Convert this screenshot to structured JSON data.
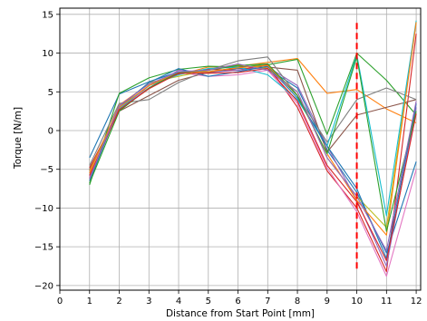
{
  "chart_data": {
    "type": "line",
    "title": "",
    "xlabel": "Distance from Start Point [mm]",
    "ylabel": "Torque [N/m]",
    "xlim": [
      0,
      12.15
    ],
    "ylim": [
      -20.6,
      15.8
    ],
    "xticks": [
      0,
      1,
      2,
      3,
      4,
      5,
      6,
      7,
      8,
      9,
      10,
      11,
      12
    ],
    "yticks": [
      -20,
      -15,
      -10,
      -5,
      0,
      5,
      10,
      15
    ],
    "grid": true,
    "x": [
      1,
      2,
      3,
      4,
      5,
      6,
      7,
      8,
      9,
      10,
      11,
      12
    ],
    "series": [
      {
        "color": "#1f77b4",
        "values": [
          -3.5,
          4.7,
          6.3,
          7.6,
          7.5,
          8.0,
          8.0,
          5.5,
          -2.5,
          -8.0,
          -15.8,
          -4.0
        ]
      },
      {
        "color": "#ff7f0e",
        "values": [
          -5.5,
          3.3,
          6.0,
          7.2,
          8.2,
          8.3,
          8.8,
          9.3,
          4.8,
          5.3,
          2.8,
          1.0
        ]
      },
      {
        "color": "#2ca02c",
        "values": [
          -7.0,
          4.8,
          6.8,
          7.9,
          8.3,
          8.2,
          8.5,
          9.2,
          -0.5,
          10.0,
          6.5,
          2.0
        ]
      },
      {
        "color": "#d62728",
        "values": [
          -4.8,
          2.6,
          5.8,
          7.3,
          7.9,
          7.8,
          8.5,
          3.0,
          -5.2,
          -10.0,
          -18.2,
          12.5
        ]
      },
      {
        "color": "#9467bd",
        "values": [
          -6.0,
          2.8,
          5.5,
          7.8,
          7.5,
          7.8,
          8.2,
          5.8,
          -2.0,
          -9.0,
          -17.5,
          3.0
        ]
      },
      {
        "color": "#8c564b",
        "values": [
          -5.0,
          2.5,
          4.5,
          6.5,
          7.5,
          8.2,
          8.2,
          7.8,
          -2.8,
          2.0,
          3.0,
          4.0
        ]
      },
      {
        "color": "#e377c2",
        "values": [
          -6.0,
          3.0,
          5.5,
          7.5,
          7.0,
          7.2,
          7.8,
          3.5,
          -4.8,
          -10.5,
          -18.8,
          -5.0
        ]
      },
      {
        "color": "#7f7f7f",
        "values": [
          -4.5,
          3.5,
          4.0,
          6.2,
          7.8,
          9.0,
          9.5,
          4.5,
          -1.5,
          4.0,
          5.5,
          4.0
        ]
      },
      {
        "color": "#bcbd22",
        "values": [
          -6.2,
          3.0,
          6.2,
          7.0,
          7.8,
          8.5,
          8.0,
          5.0,
          -3.5,
          -8.5,
          -12.5,
          14.0
        ]
      },
      {
        "color": "#17becf",
        "values": [
          -5.2,
          2.8,
          5.8,
          7.2,
          8.0,
          8.2,
          7.2,
          4.0,
          -2.0,
          9.8,
          -11.0,
          14.2
        ]
      },
      {
        "color": "#1f77b4",
        "values": [
          -6.5,
          3.0,
          6.2,
          8.0,
          7.0,
          7.6,
          8.3,
          4.2,
          -2.0,
          -7.5,
          -16.5,
          3.5
        ]
      },
      {
        "color": "#ff7f0e",
        "values": [
          -5.2,
          3.0,
          5.8,
          7.5,
          7.6,
          8.1,
          8.4,
          4.5,
          -3.0,
          -9.0,
          -13.5,
          14.0
        ]
      },
      {
        "color": "#2ca02c",
        "values": [
          -6.8,
          2.5,
          5.5,
          7.5,
          7.8,
          8.4,
          8.6,
          4.5,
          -3.0,
          9.5,
          -13.0,
          2.5
        ]
      },
      {
        "color": "#d62728",
        "values": [
          -5.8,
          2.7,
          5.4,
          7.4,
          7.4,
          7.5,
          8.0,
          3.8,
          -4.5,
          -9.2,
          -16.8,
          2.2
        ]
      },
      {
        "color": "#9467bd",
        "values": [
          -6.2,
          3.2,
          6.0,
          7.6,
          7.8,
          8.6,
          7.8,
          5.0,
          -3.5,
          -8.5,
          -15.5,
          3.8
        ]
      }
    ],
    "marker_line": {
      "x": 10,
      "y_from": -18.0,
      "y_to": 13.9,
      "color": "#ff0000",
      "style": "dashed"
    }
  }
}
